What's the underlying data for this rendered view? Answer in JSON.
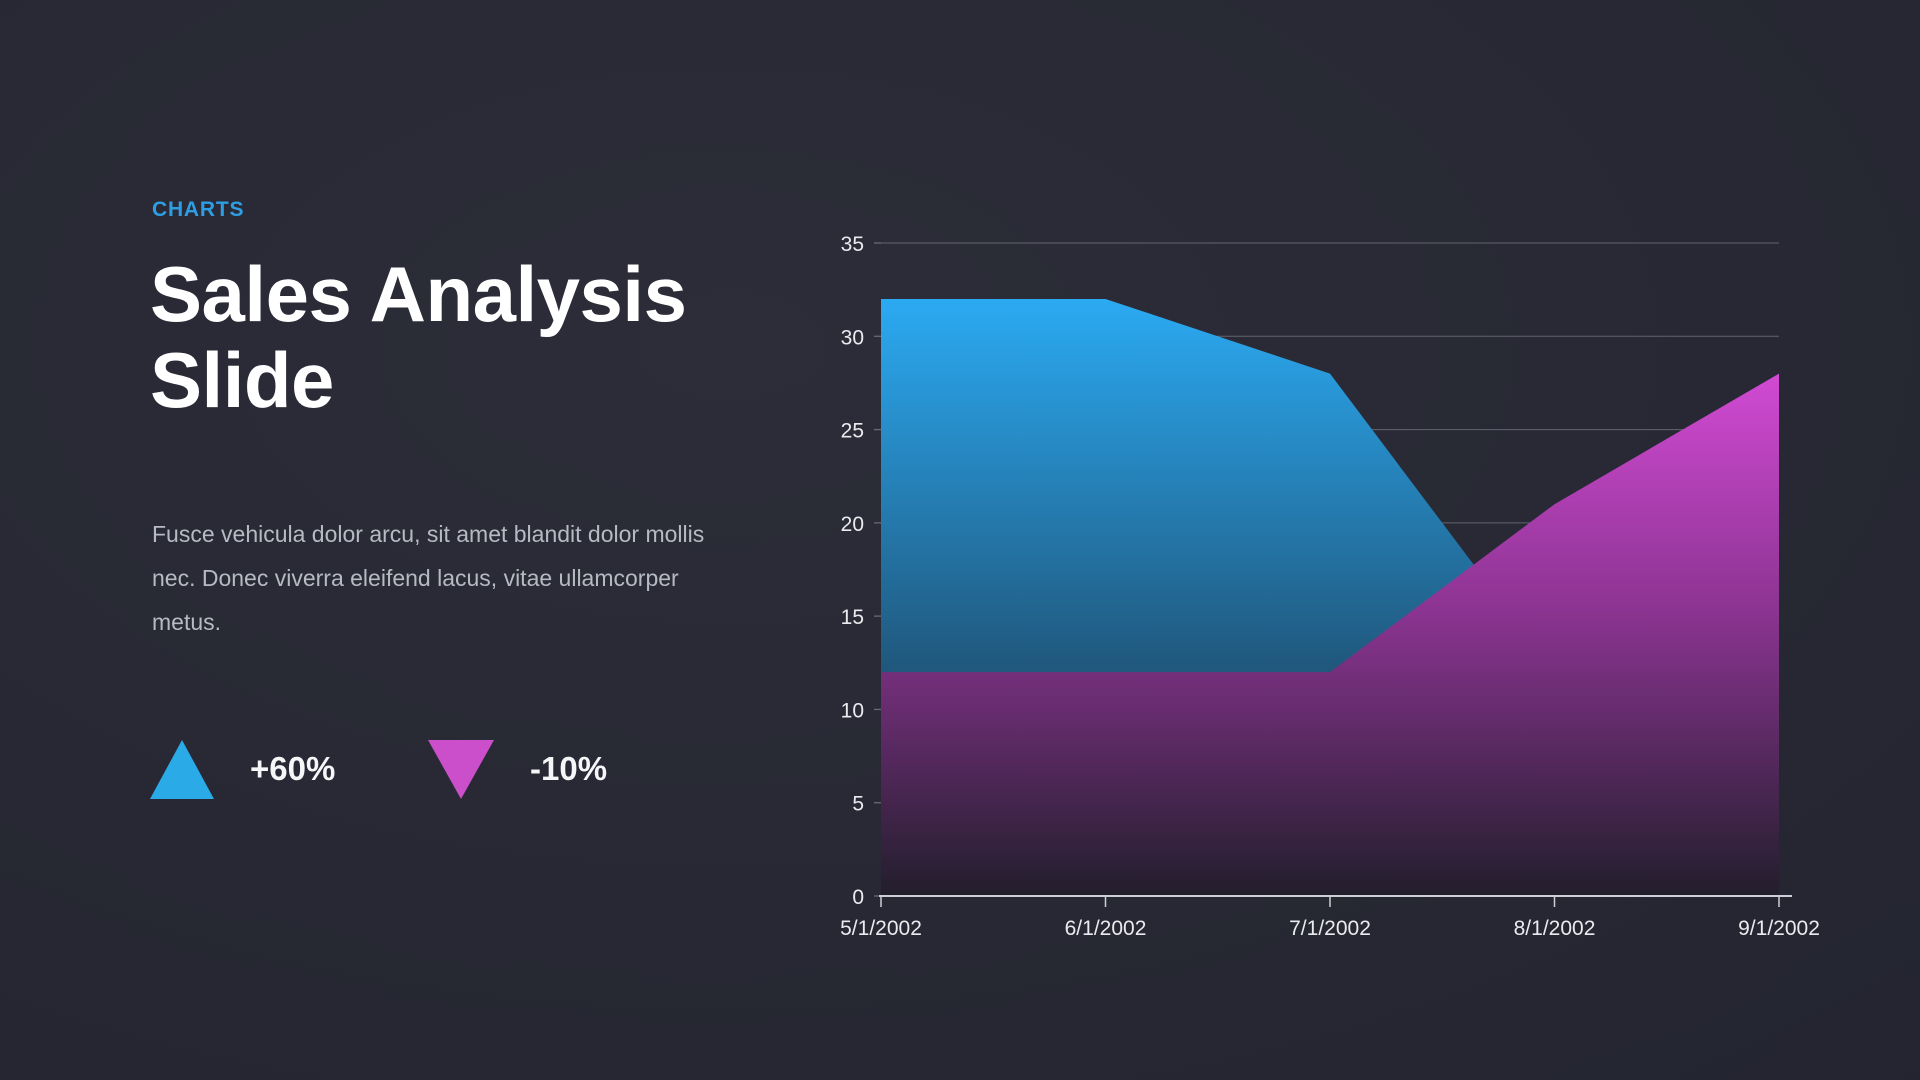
{
  "slide": {
    "kicker": "CHARTS",
    "title": "Sales Analysis Slide",
    "body_text": "Fusce vehicula dolor arcu, sit amet blandit dolor mollis nec. Donec viverra eleifend lacus, vitae ullamcorper metus.",
    "indicators": [
      {
        "direction": "up",
        "label": "+60%",
        "color": "#2baae8"
      },
      {
        "direction": "down",
        "label": "-10%",
        "color": "#cb4ecb"
      }
    ],
    "colors": {
      "background": "#272833",
      "accent_blue": "#2e9ee4",
      "accent_magenta": "#cb4ecb",
      "title_text": "#ffffff",
      "body_text": "#b6bac2",
      "axis_text": "#e9ebef",
      "gridline": "#9b9ea8",
      "axis_line": "#cdcfd6"
    }
  },
  "chart_data": {
    "type": "area",
    "title": "",
    "xlabel": "",
    "ylabel": "",
    "categories": [
      "5/1/2002",
      "6/1/2002",
      "7/1/2002",
      "8/1/2002",
      "9/1/2002"
    ],
    "series": [
      {
        "name": "blue-series",
        "values": [
          32,
          32,
          28,
          12,
          12
        ],
        "color_top": "#2baaf2",
        "color_mid": "#21618a",
        "color_bottom": "#1b2331",
        "mid_offset": 0.55
      },
      {
        "name": "magenta-series",
        "values": [
          12,
          12,
          12,
          21,
          28
        ],
        "color_top": "#d14ad3",
        "color_mid": "#8c3492",
        "color_bottom": "#221e2c",
        "mid_offset": 0.45
      }
    ],
    "ylim": [
      0,
      35
    ],
    "yticks": [
      0,
      5,
      10,
      15,
      20,
      25,
      30,
      35
    ],
    "grid": "horizontal",
    "legend": "none"
  }
}
